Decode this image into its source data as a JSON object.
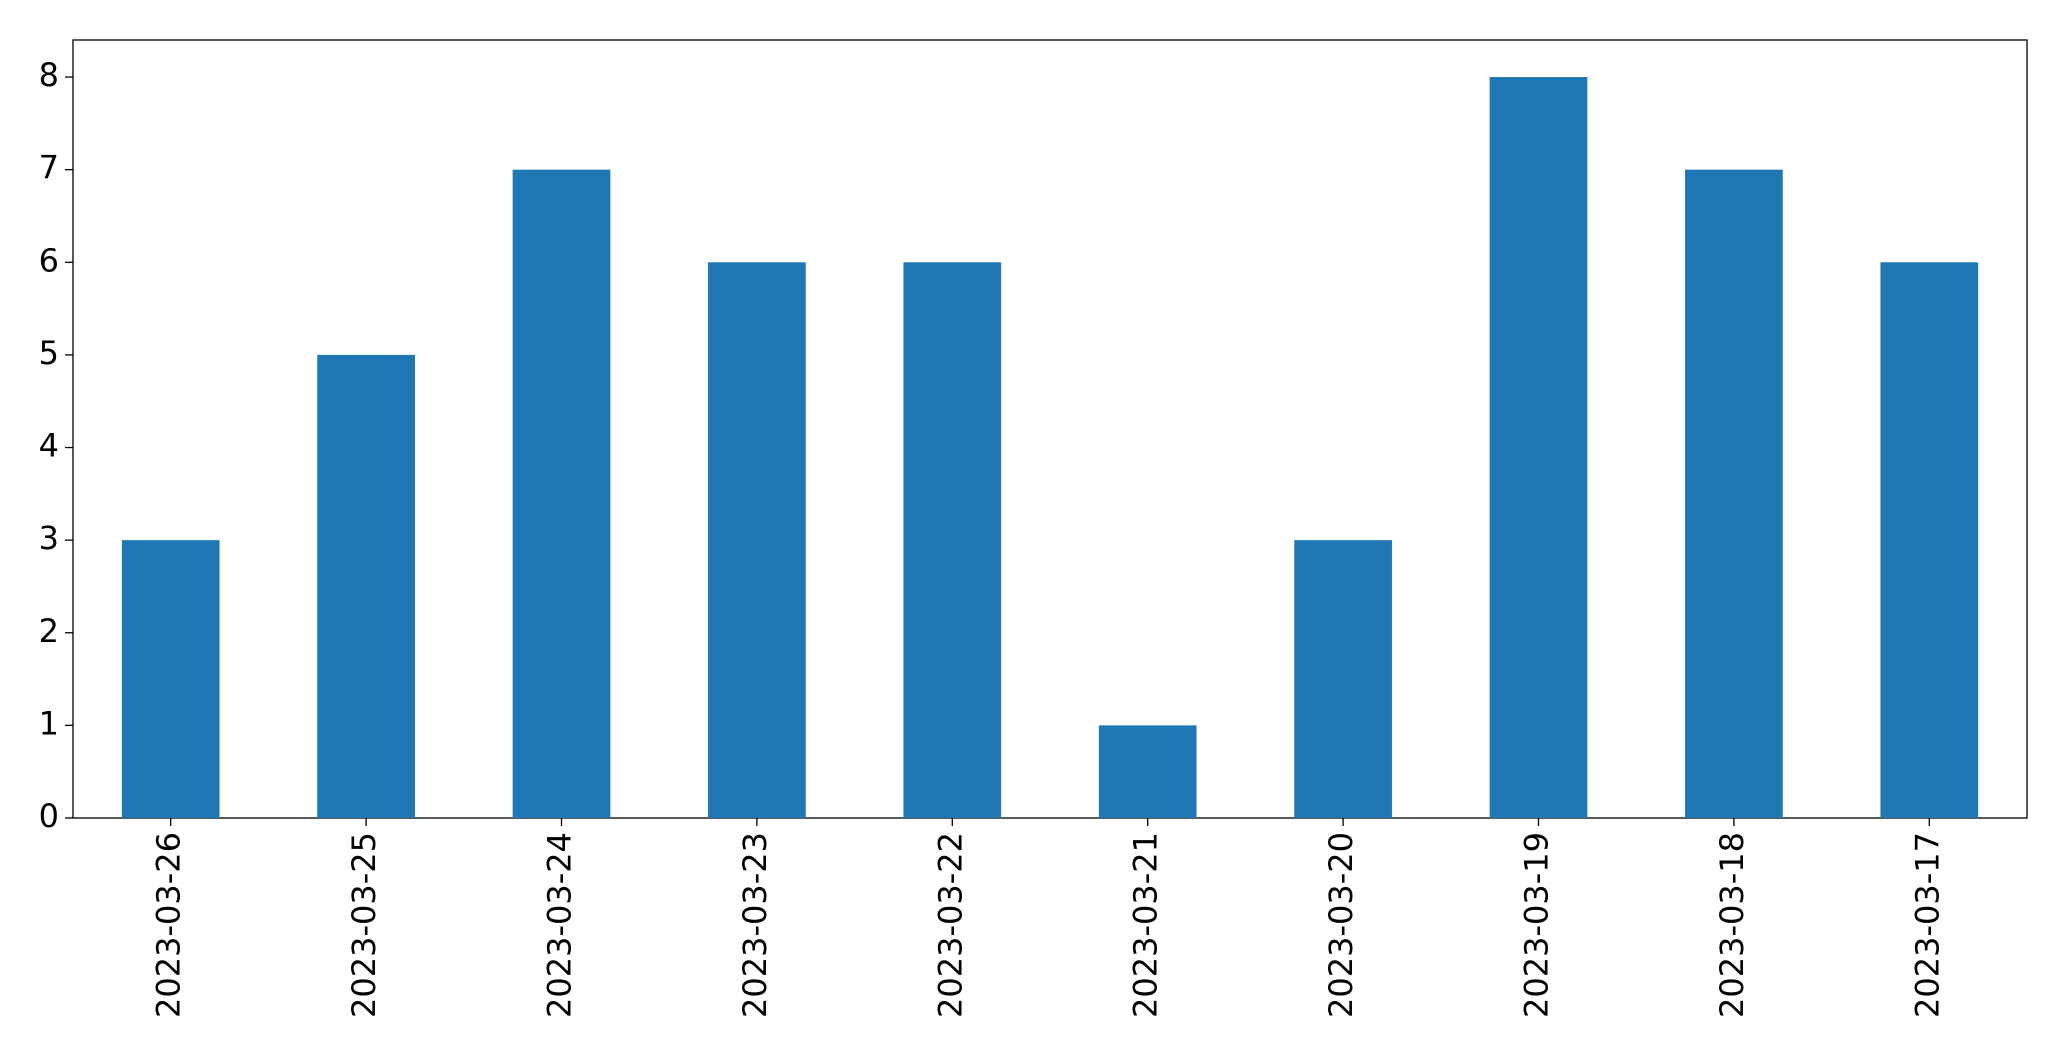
{
  "chart_data": {
    "type": "bar",
    "categories": [
      "2023-03-26",
      "2023-03-25",
      "2023-03-24",
      "2023-03-23",
      "2023-03-22",
      "2023-03-21",
      "2023-03-20",
      "2023-03-19",
      "2023-03-18",
      "2023-03-17"
    ],
    "values": [
      3,
      5,
      7,
      6,
      6,
      1,
      3,
      8,
      7,
      6
    ],
    "color": "#1f77b4",
    "ylim": [
      0,
      8.4
    ],
    "yticks": [
      0,
      1,
      2,
      3,
      4,
      5,
      6,
      7,
      8
    ],
    "grid": false
  }
}
